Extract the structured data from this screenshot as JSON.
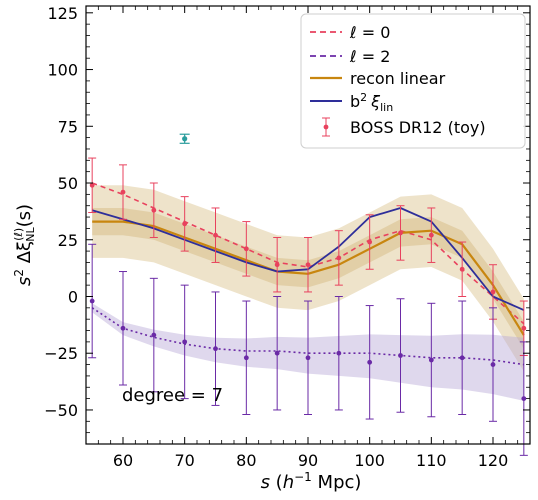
{
  "chart_data": {
    "type": "line",
    "xlim": [
      54,
      126
    ],
    "ylim": [
      -65,
      128
    ],
    "xticks": [
      60,
      70,
      80,
      90,
      100,
      110,
      120
    ],
    "yticks": [
      -50,
      -25,
      0,
      25,
      50,
      75,
      100,
      125
    ],
    "grid": false,
    "legend_position": "top-right",
    "annotation": "degree = 7",
    "colors": {
      "l0": "#e8415d",
      "l2": "#6a2aa6",
      "recon": "#c8860f",
      "blin": "#2e2e9a",
      "band": "#d9c08a",
      "outlier": "#2a9d9d"
    },
    "x": [
      55,
      60,
      65,
      70,
      75,
      80,
      85,
      90,
      95,
      100,
      105,
      110,
      115,
      120,
      125
    ],
    "series": [
      {
        "name": "ℓ = 0",
        "style": "dashed",
        "values": [
          50,
          45,
          39,
          33,
          27,
          21,
          15,
          13,
          17,
          25,
          29,
          25,
          12,
          0,
          -12
        ]
      },
      {
        "name": "ℓ = 2",
        "style": "dashed",
        "values": [
          -5,
          -14,
          -18,
          -21,
          -23,
          -24,
          -24,
          -25,
          -25,
          -25,
          -26,
          -27,
          -27,
          -28,
          -30
        ]
      },
      {
        "name": "recon linear",
        "style": "solid",
        "values": [
          33,
          33,
          31,
          26,
          21,
          16,
          11,
          10,
          14,
          21,
          28,
          29,
          23,
          5,
          -17
        ]
      },
      {
        "name": "b² ξ_lin",
        "style": "solid",
        "values": [
          38,
          34,
          30,
          25,
          20,
          15,
          11,
          12,
          22,
          35,
          39,
          33,
          17,
          0,
          -6
        ]
      }
    ],
    "points": [
      {
        "name": "BOSS DR12 (toy)",
        "x": [
          55,
          60,
          65,
          70,
          75,
          80,
          85,
          90,
          95,
          100,
          105,
          110,
          115,
          120,
          125
        ],
        "values": [
          49,
          46,
          38,
          32,
          27,
          21,
          14,
          14,
          17,
          24,
          28,
          27,
          12,
          2,
          -14
        ],
        "yerr": 12
      },
      {
        "name": "",
        "x": [
          55,
          60,
          65,
          70,
          75,
          80,
          85,
          90,
          95,
          100,
          105,
          110,
          115,
          120,
          125
        ],
        "values": [
          -2,
          -14,
          -17,
          -20,
          -23,
          -27,
          -25,
          -27,
          -25,
          -29,
          -26,
          -28,
          -27,
          -30,
          -45
        ],
        "yerr": 25
      }
    ],
    "outlier": {
      "x": 70,
      "y": 69.5,
      "yerr": 2
    },
    "texts": {
      "legend_l0": "ℓ = 0",
      "legend_l2": "ℓ = 2",
      "legend_recon": "recon linear",
      "legend_blin": "b",
      "legend_blin_sup": "2",
      "legend_blin_xi": "ξ",
      "legend_blin_sub": "lin",
      "legend_boss": "BOSS DR12 (toy)",
      "xlabel_s": "s",
      "xlabel_paren_open": " (",
      "xlabel_h": "h",
      "xlabel_sup": "−1",
      "xlabel_unit": " Mpc)",
      "ylabel_s": "s",
      "ylabel_sup": "2",
      "ylabel_delta": " Δξ",
      "ylabel_sup2": "(ℓ)",
      "ylabel_sub": "NL",
      "ylabel_tail": "(s)"
    }
  }
}
